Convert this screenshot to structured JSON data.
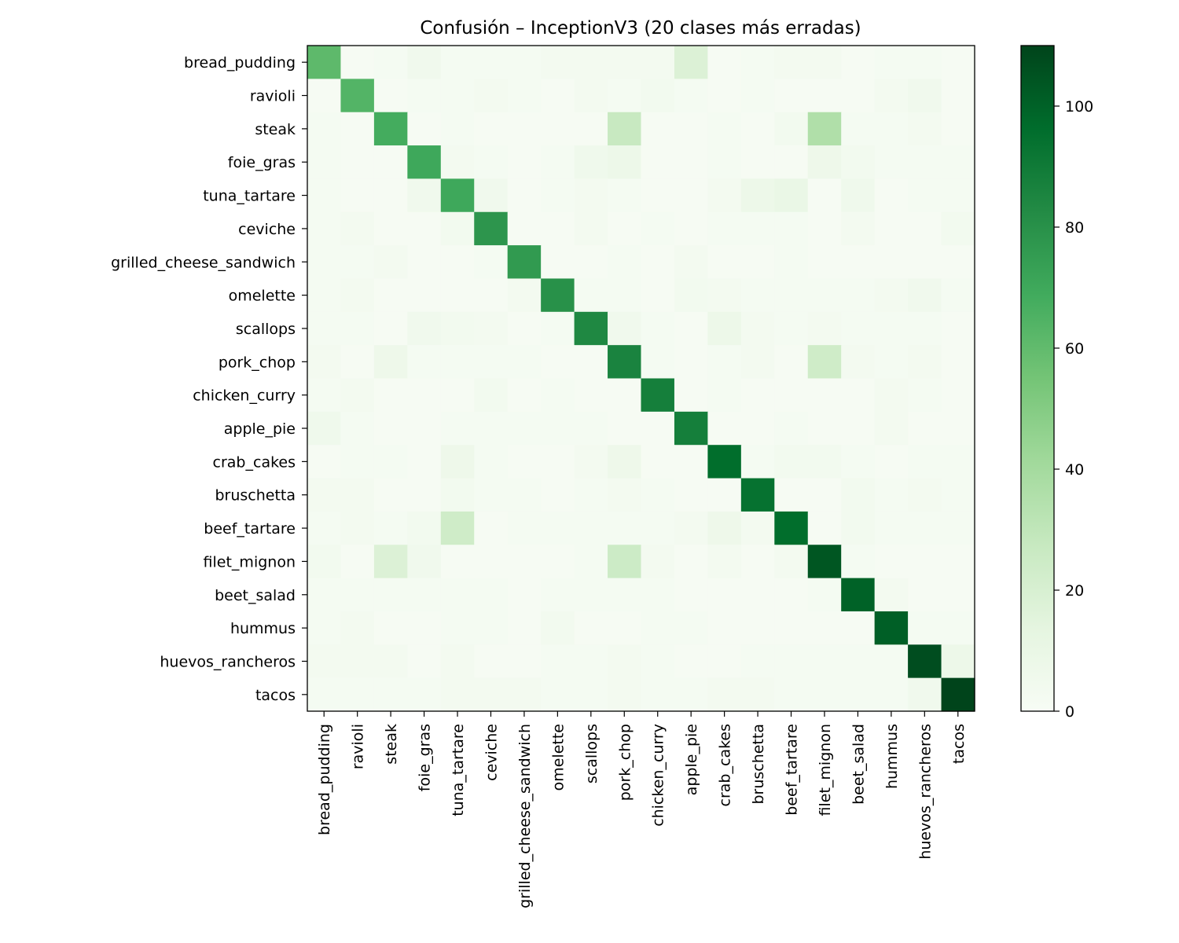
{
  "chart_data": {
    "type": "heatmap",
    "title": "Confusión – InceptionV3 (20 clases más erradas)",
    "xlabel": "",
    "ylabel": "",
    "colormap": "Greens",
    "colormap_stops": [
      "#f7fcf5",
      "#e5f5e0",
      "#c7e9c0",
      "#a1d99b",
      "#74c476",
      "#41ab5d",
      "#238b45",
      "#006d2c",
      "#00441b"
    ],
    "value_range": [
      0,
      110
    ],
    "colorbar_ticks": [
      0,
      20,
      40,
      60,
      80,
      100
    ],
    "row_labels": [
      "bread_pudding",
      "ravioli",
      "steak",
      "foie_gras",
      "tuna_tartare",
      "ceviche",
      "grilled_cheese_sandwich",
      "omelette",
      "scallops",
      "pork_chop",
      "chicken_curry",
      "apple_pie",
      "crab_cakes",
      "bruschetta",
      "beef_tartare",
      "filet_mignon",
      "beet_salad",
      "hummus",
      "huevos_rancheros",
      "tacos"
    ],
    "col_labels": [
      "bread_pudding",
      "ravioli",
      "steak",
      "foie_gras",
      "tuna_tartare",
      "ceviche",
      "grilled_cheese_sandwich",
      "omelette",
      "scallops",
      "pork_chop",
      "chicken_curry",
      "apple_pie",
      "crab_cakes",
      "bruschetta",
      "beef_tartare",
      "filet_mignon",
      "beet_salad",
      "hummus",
      "huevos_rancheros",
      "tacos"
    ],
    "matrix": [
      [
        61,
        1,
        2,
        5,
        2,
        2,
        2,
        3,
        3,
        3,
        3,
        18,
        1,
        2,
        3,
        3,
        1,
        2,
        2,
        1
      ],
      [
        1,
        64,
        1,
        2,
        2,
        3,
        2,
        1,
        3,
        2,
        4,
        2,
        1,
        2,
        1,
        1,
        1,
        3,
        5,
        1
      ],
      [
        2,
        1,
        68,
        1,
        2,
        1,
        1,
        1,
        1,
        27,
        1,
        1,
        2,
        1,
        4,
        36,
        2,
        2,
        3,
        1
      ],
      [
        2,
        1,
        1,
        70,
        3,
        2,
        1,
        2,
        6,
        8,
        1,
        1,
        2,
        1,
        1,
        7,
        4,
        2,
        2,
        2
      ],
      [
        2,
        1,
        1,
        5,
        70,
        5,
        1,
        2,
        3,
        2,
        1,
        1,
        3,
        8,
        10,
        1,
        6,
        1,
        2,
        2
      ],
      [
        2,
        3,
        1,
        1,
        4,
        78,
        1,
        1,
        3,
        1,
        2,
        1,
        2,
        2,
        2,
        1,
        3,
        1,
        1,
        4
      ],
      [
        2,
        2,
        3,
        1,
        1,
        2,
        76,
        1,
        1,
        2,
        1,
        3,
        1,
        1,
        2,
        1,
        1,
        1,
        1,
        1
      ],
      [
        2,
        3,
        1,
        1,
        1,
        1,
        3,
        80,
        2,
        2,
        1,
        4,
        3,
        2,
        2,
        2,
        2,
        3,
        5,
        2
      ],
      [
        2,
        2,
        1,
        5,
        4,
        3,
        1,
        2,
        84,
        5,
        2,
        1,
        8,
        3,
        2,
        3,
        2,
        2,
        2,
        1
      ],
      [
        3,
        1,
        7,
        2,
        2,
        2,
        2,
        1,
        1,
        86,
        2,
        1,
        2,
        3,
        1,
        24,
        3,
        2,
        3,
        1
      ],
      [
        2,
        3,
        1,
        1,
        1,
        4,
        1,
        2,
        1,
        1,
        88,
        1,
        2,
        1,
        1,
        1,
        1,
        3,
        2,
        1
      ],
      [
        6,
        2,
        1,
        1,
        2,
        2,
        2,
        2,
        2,
        1,
        1,
        88,
        1,
        1,
        2,
        1,
        1,
        3,
        1,
        1
      ],
      [
        1,
        2,
        2,
        1,
        7,
        2,
        1,
        1,
        3,
        7,
        1,
        1,
        96,
        2,
        4,
        4,
        2,
        1,
        2,
        2
      ],
      [
        3,
        3,
        1,
        1,
        4,
        2,
        2,
        1,
        2,
        3,
        2,
        1,
        1,
        94,
        1,
        1,
        4,
        2,
        3,
        2
      ],
      [
        2,
        3,
        2,
        4,
        24,
        1,
        2,
        2,
        2,
        2,
        2,
        3,
        7,
        3,
        96,
        1,
        4,
        2,
        2,
        2
      ],
      [
        4,
        1,
        18,
        5,
        1,
        1,
        1,
        1,
        2,
        25,
        3,
        1,
        3,
        1,
        3,
        104,
        2,
        1,
        1,
        1
      ],
      [
        2,
        2,
        2,
        2,
        2,
        2,
        1,
        2,
        2,
        2,
        2,
        1,
        1,
        1,
        1,
        2,
        100,
        3,
        1,
        1
      ],
      [
        2,
        3,
        1,
        1,
        2,
        2,
        1,
        4,
        1,
        1,
        2,
        2,
        1,
        1,
        1,
        1,
        1,
        101,
        2,
        2
      ],
      [
        3,
        3,
        3,
        1,
        3,
        1,
        1,
        2,
        2,
        3,
        2,
        1,
        1,
        2,
        2,
        2,
        2,
        2,
        107,
        8
      ],
      [
        2,
        2,
        2,
        2,
        3,
        3,
        3,
        2,
        2,
        3,
        2,
        2,
        3,
        3,
        2,
        2,
        2,
        2,
        5,
        112
      ]
    ]
  }
}
